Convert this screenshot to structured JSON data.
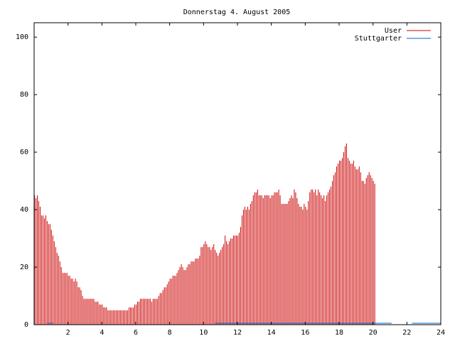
{
  "chart_data": {
    "type": "bar",
    "title": "Donnerstag 4. August 2005",
    "xlabel": "",
    "ylabel": "",
    "xlim": [
      0,
      24
    ],
    "ylim": [
      0,
      105
    ],
    "grid": false,
    "legend_position": "top-right",
    "x_ticks": [
      "2",
      "4",
      "6",
      "8",
      "10",
      "12",
      "14",
      "16",
      "18",
      "20",
      "22",
      "24"
    ],
    "y_ticks": [
      "0",
      "20",
      "40",
      "60",
      "80",
      "100"
    ],
    "series": [
      {
        "name": "User",
        "color": "#cc0000",
        "step_hours": 0.08333,
        "values": [
          45,
          44,
          45,
          43,
          41,
          38,
          38,
          37,
          38,
          36,
          35,
          35,
          33,
          31,
          29,
          27,
          25,
          24,
          22,
          20,
          18,
          18,
          18,
          18,
          17,
          17,
          16,
          16,
          15,
          16,
          15,
          13,
          13,
          12,
          10,
          9,
          9,
          9,
          9,
          9,
          9,
          9,
          9,
          8,
          8,
          8,
          7,
          7,
          7,
          6,
          6,
          6,
          5,
          5,
          5,
          5,
          5,
          5,
          5,
          5,
          5,
          5,
          5,
          5,
          5,
          5,
          5,
          6,
          6,
          6,
          6,
          7,
          7,
          8,
          8,
          9,
          9,
          9,
          9,
          9,
          9,
          9,
          9,
          8,
          9,
          9,
          9,
          9,
          10,
          11,
          11,
          12,
          13,
          13,
          14,
          15,
          16,
          16,
          17,
          17,
          17,
          18,
          19,
          20,
          21,
          20,
          19,
          19,
          20,
          21,
          21,
          22,
          22,
          22,
          23,
          23,
          23,
          24,
          27,
          27,
          28,
          29,
          28,
          27,
          27,
          26,
          27,
          28,
          26,
          25,
          24,
          25,
          26,
          27,
          28,
          31,
          29,
          28,
          29,
          30,
          30,
          31,
          31,
          31,
          31,
          32,
          34,
          38,
          40,
          41,
          40,
          41,
          40,
          42,
          43,
          45,
          46,
          46,
          47,
          45,
          45,
          45,
          44,
          45,
          45,
          45,
          45,
          44,
          45,
          45,
          46,
          46,
          46,
          47,
          45,
          42,
          42,
          42,
          42,
          42,
          43,
          44,
          45,
          44,
          47,
          46,
          44,
          42,
          41,
          41,
          40,
          42,
          41,
          40,
          43,
          46,
          47,
          47,
          46,
          47,
          45,
          47,
          46,
          45,
          44,
          45,
          43,
          45,
          46,
          47,
          48,
          50,
          52,
          53,
          55,
          56,
          57,
          57,
          58,
          60,
          62,
          63,
          58,
          57,
          56,
          56,
          57,
          55,
          54,
          54,
          55,
          53,
          50,
          50,
          49,
          51,
          52,
          53,
          52,
          51,
          50,
          49
        ]
      },
      {
        "name": "Stuttgarter",
        "color": "#0066cc",
        "segments": [
          {
            "from": 0.8,
            "to": 1.1,
            "value": 1
          },
          {
            "from": 10.7,
            "to": 21.1,
            "value": 1
          },
          {
            "from": 22.3,
            "to": 24.0,
            "value": 1
          }
        ]
      }
    ]
  }
}
